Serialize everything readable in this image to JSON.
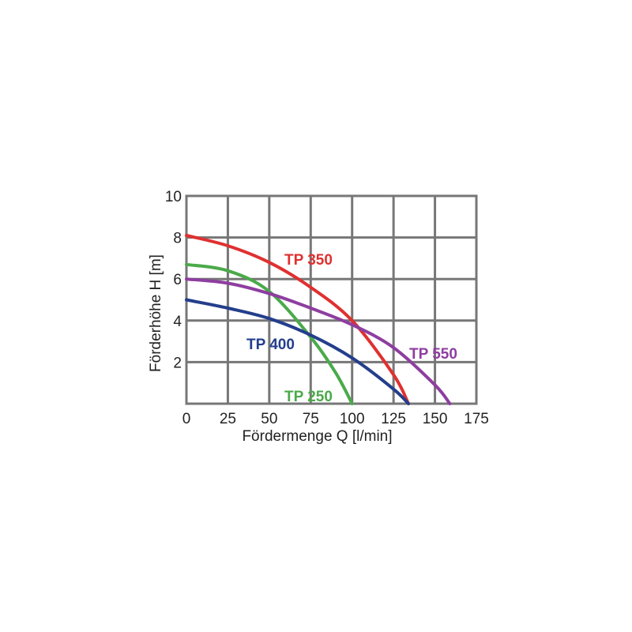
{
  "chart_data": {
    "type": "line",
    "xlabel": "Fördermenge Q [l/min]",
    "ylabel": "Förderhöhe H [m]",
    "xlim": [
      0,
      175
    ],
    "ylim": [
      0,
      10
    ],
    "x_ticks": [
      "0",
      "25",
      "50",
      "75",
      "100",
      "125",
      "150",
      "175"
    ],
    "y_ticks": [
      "2",
      "4",
      "6",
      "8",
      "10"
    ],
    "grid": true,
    "series": [
      {
        "name": "TP 350",
        "color": "#e03030",
        "x": [
          0,
          25,
          50,
          75,
          100,
          125,
          134
        ],
        "y": [
          8.1,
          7.6,
          6.8,
          5.6,
          4.0,
          1.4,
          0
        ]
      },
      {
        "name": "TP 250",
        "color": "#4aaa4a",
        "x": [
          0,
          25,
          50,
          75,
          90,
          100
        ],
        "y": [
          6.7,
          6.4,
          5.4,
          3.2,
          1.5,
          0
        ]
      },
      {
        "name": "TP 400",
        "color": "#243e8c",
        "x": [
          0,
          25,
          50,
          75,
          100,
          125,
          134
        ],
        "y": [
          5.0,
          4.6,
          4.1,
          3.3,
          2.2,
          0.7,
          0
        ]
      },
      {
        "name": "TP 550",
        "color": "#8e3ea0",
        "x": [
          0,
          25,
          50,
          75,
          100,
          125,
          150,
          159
        ],
        "y": [
          6.0,
          5.8,
          5.3,
          4.6,
          3.8,
          2.7,
          0.9,
          0
        ]
      }
    ]
  }
}
